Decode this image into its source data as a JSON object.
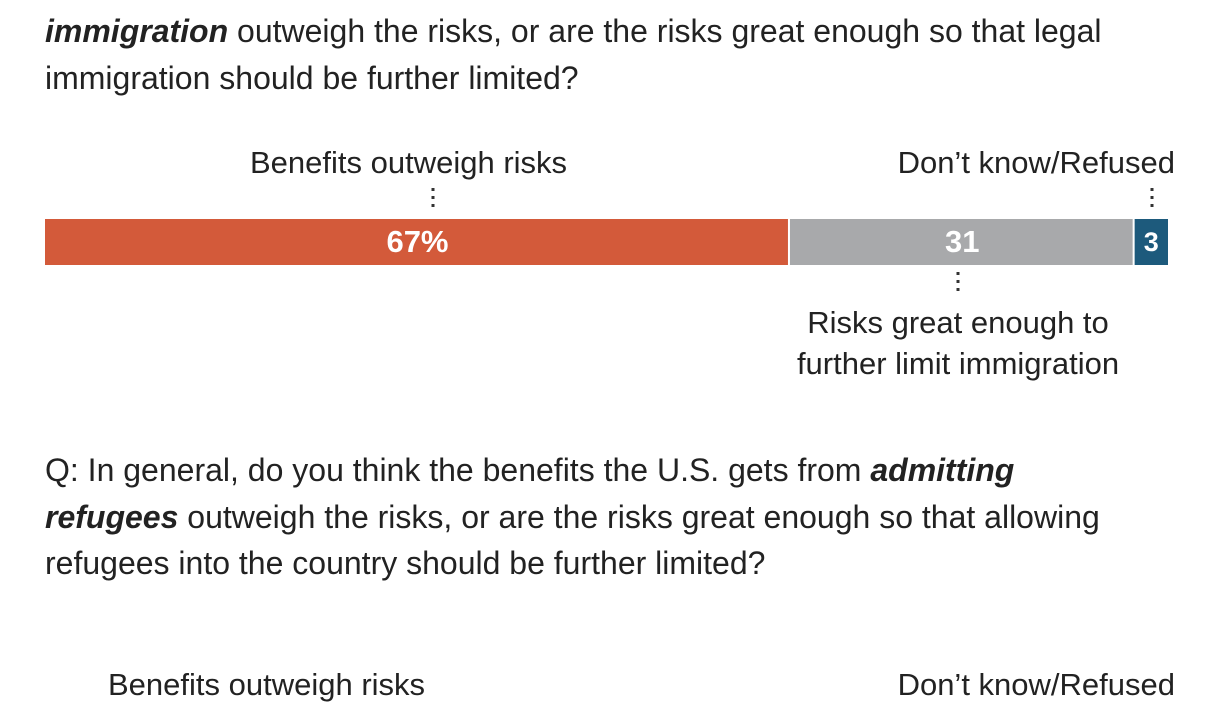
{
  "chart_data": [
    {
      "type": "stacked-bar",
      "question_emphasis": "immigration",
      "question": "outweigh the risks, or are the risks great enough so that legal immigration should be further limited?",
      "series": [
        {
          "name": "Benefits outweigh risks",
          "color": "#d35a3a",
          "values": [
            67
          ],
          "value_labels": [
            "67%"
          ]
        },
        {
          "name": "Risks great enough to further limit immigration",
          "color": "#a8a9ab",
          "values": [
            31
          ],
          "value_labels": [
            "31"
          ]
        },
        {
          "name": "Don’t know/Refused",
          "color": "#1d5a7c",
          "values": [
            3
          ],
          "value_labels": [
            "3"
          ]
        }
      ]
    },
    {
      "type": "stacked-bar",
      "question_prefix": "Q: In general, do you think the benefits the U.S. gets from",
      "question_emphasis": "admitting refugees",
      "question": "outweigh the risks, or are the risks great enough so that allowing refugees into the country should be further limited?",
      "labels": [
        "Benefits outweigh risks",
        "Don’t know/Refused"
      ]
    }
  ]
}
